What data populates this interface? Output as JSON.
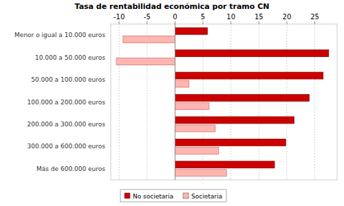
{
  "chart_data": {
    "type": "bar",
    "orientation": "horizontal",
    "title": "Tasa de rentabilidad económica por tramo CN",
    "categories": [
      "Menor o igual a 10.000 euros",
      "10.000 a 50.000 euros",
      "50.000 a 100.000 euros",
      "100.000 a 200.000 euros",
      "200.000 a 300.000 euros",
      "300.000 a 600.000 euros",
      "Más de 600.000 euros"
    ],
    "series": [
      {
        "name": "No societaria",
        "color": "#cc0000",
        "values": [
          5.8,
          27.5,
          26.5,
          24.0,
          21.3,
          19.8,
          17.8
        ]
      },
      {
        "name": "Societaria",
        "color": "#ffb6b0",
        "values": [
          -9.3,
          -10.5,
          2.5,
          6.1,
          7.2,
          7.8,
          9.2
        ]
      }
    ],
    "xlim": [
      -11.5,
      29
    ],
    "xticks": [
      -10,
      -5,
      0,
      5,
      10,
      15,
      20,
      25
    ],
    "grid": true,
    "legend": "bottom"
  }
}
